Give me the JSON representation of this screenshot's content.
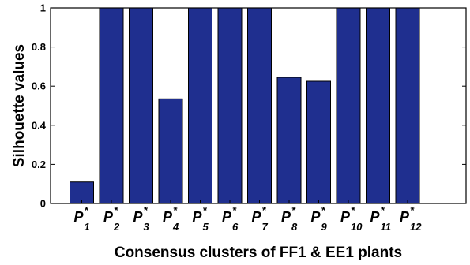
{
  "chart_data": {
    "type": "bar",
    "title": "",
    "xlabel": "Consensus clusters of FF1 & EE1 plants",
    "ylabel": "Silhouette values",
    "ylim": [
      0,
      1
    ],
    "yticks": [
      "0",
      "0.2",
      "0.4",
      "0.6",
      "0.8",
      "1"
    ],
    "categories": [
      {
        "main": "P",
        "sup": "*",
        "sub": "1"
      },
      {
        "main": "P",
        "sup": "*",
        "sub": "2"
      },
      {
        "main": "P",
        "sup": "*",
        "sub": "3"
      },
      {
        "main": "P",
        "sup": "*",
        "sub": "4"
      },
      {
        "main": "P",
        "sup": "*",
        "sub": "5"
      },
      {
        "main": "P",
        "sup": "*",
        "sub": "6"
      },
      {
        "main": "P",
        "sup": "*",
        "sub": "7"
      },
      {
        "main": "P",
        "sup": "*",
        "sub": "8"
      },
      {
        "main": "P",
        "sup": "*",
        "sub": "9"
      },
      {
        "main": "P",
        "sup": "*",
        "sub": "10"
      },
      {
        "main": "P",
        "sup": "*",
        "sub": "11"
      },
      {
        "main": "P",
        "sup": "*",
        "sub": "12"
      }
    ],
    "values": [
      0.11,
      1.0,
      1.0,
      0.535,
      1.0,
      1.0,
      1.0,
      0.645,
      0.625,
      1.0,
      1.0,
      1.0
    ],
    "bar_color": "#1f2f8f",
    "grid": false,
    "legend": "none"
  }
}
